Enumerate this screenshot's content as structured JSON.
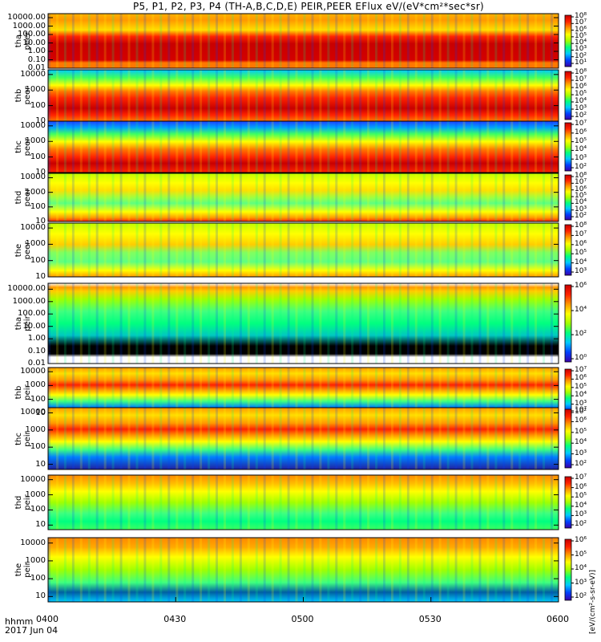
{
  "title": "P5, P1, P2, P3, P4 (TH-A,B,C,D,E) PEIR,PEER EFlux eV/(eV*cm²*sec*sr)",
  "x_axis_label": "hhmm",
  "date_label": "2017 Jun 04",
  "colorbar_label": "[eV/(cm²-s-sr-eV)]",
  "chart_data": {
    "type": "heatmap",
    "x_ticks": [
      "0400",
      "0430",
      "0500",
      "0530",
      "0600"
    ],
    "x_range_minutes": [
      0,
      120
    ],
    "colorbar_colors": [
      "#3b00a8",
      "#0040ff",
      "#00c8ff",
      "#00ff80",
      "#a0ff00",
      "#ffff00",
      "#ff9900",
      "#ff2200",
      "#c80000"
    ],
    "panels": [
      {
        "label": "tha\npeer",
        "yscale": "log",
        "ylim": [
          0.01,
          30000
        ],
        "yticks": [
          "10000.00",
          "1000.00",
          "100.00",
          "10.00",
          "1.00",
          "0.10",
          "0.01"
        ],
        "cbticks": [
          "10⁸",
          "10⁷",
          "10⁶",
          "10⁵",
          "10⁴",
          "10³",
          "10²",
          "10¹"
        ]
      },
      {
        "label": "thb\npeer",
        "yscale": "log",
        "ylim": [
          10,
          20000
        ],
        "yticks": [
          "10000",
          "1000",
          "100",
          "10"
        ],
        "cbticks": [
          "10⁸",
          "10⁷",
          "10⁶",
          "10⁵",
          "10⁴",
          "10³",
          "10²"
        ]
      },
      {
        "label": "thc\npeer",
        "yscale": "log",
        "ylim": [
          10,
          20000
        ],
        "yticks": [
          "10000",
          "1000",
          "100",
          "10"
        ],
        "cbticks": [
          "10⁷",
          "10⁶",
          "10⁵",
          "10⁴",
          "10³",
          "10²"
        ]
      },
      {
        "label": "thd\npeer",
        "yscale": "log",
        "ylim": [
          10,
          20000
        ],
        "yticks": [
          "10000",
          "1000",
          "100",
          "10"
        ],
        "cbticks": [
          "10⁸",
          "10⁷",
          "10⁶",
          "10⁵",
          "10⁴",
          "10³",
          "10²"
        ]
      },
      {
        "label": "the\npeer",
        "yscale": "log",
        "ylim": [
          10,
          20000
        ],
        "yticks": [
          "10000",
          "1000",
          "100",
          "10"
        ],
        "cbticks": [
          "10⁸",
          "10⁷",
          "10⁶",
          "10⁵",
          "10⁴",
          "10³"
        ]
      },
      {
        "label": "tha\npeir",
        "yscale": "log",
        "ylim": [
          0.01,
          30000
        ],
        "yticks": [
          "10000.00",
          "1000.00",
          "100.00",
          "10.00",
          "1.00",
          "0.10",
          "0.01"
        ],
        "cbticks": [
          "10⁶",
          "10⁴",
          "10²",
          "10⁰"
        ]
      },
      {
        "label": "thb\npeir",
        "yscale": "log",
        "ylim": [
          5,
          20000
        ],
        "yticks": [
          "10000",
          "1000",
          "100",
          "10"
        ],
        "cbticks": [
          "10⁷",
          "10⁶",
          "10⁵",
          "10⁴",
          "10³",
          "10²"
        ]
      },
      {
        "label": "thc\npeir",
        "yscale": "log",
        "ylim": [
          5,
          20000
        ],
        "yticks": [
          "10000",
          "1000",
          "100",
          "10"
        ],
        "cbticks": [
          "10⁷",
          "10⁶",
          "10⁵",
          "10⁴",
          "10³",
          "10²"
        ]
      },
      {
        "label": "thd\npeir",
        "yscale": "log",
        "ylim": [
          5,
          20000
        ],
        "yticks": [
          "10000",
          "1000",
          "100",
          "10"
        ],
        "cbticks": [
          "10⁷",
          "10⁶",
          "10⁵",
          "10⁴",
          "10³",
          "10²"
        ]
      },
      {
        "label": "the\npeir",
        "yscale": "log",
        "ylim": [
          5,
          20000
        ],
        "yticks": [
          "10000",
          "1000",
          "100",
          "10"
        ],
        "cbticks": [
          "10⁶",
          "10⁵",
          "10⁴",
          "10³",
          "10²"
        ]
      }
    ]
  }
}
